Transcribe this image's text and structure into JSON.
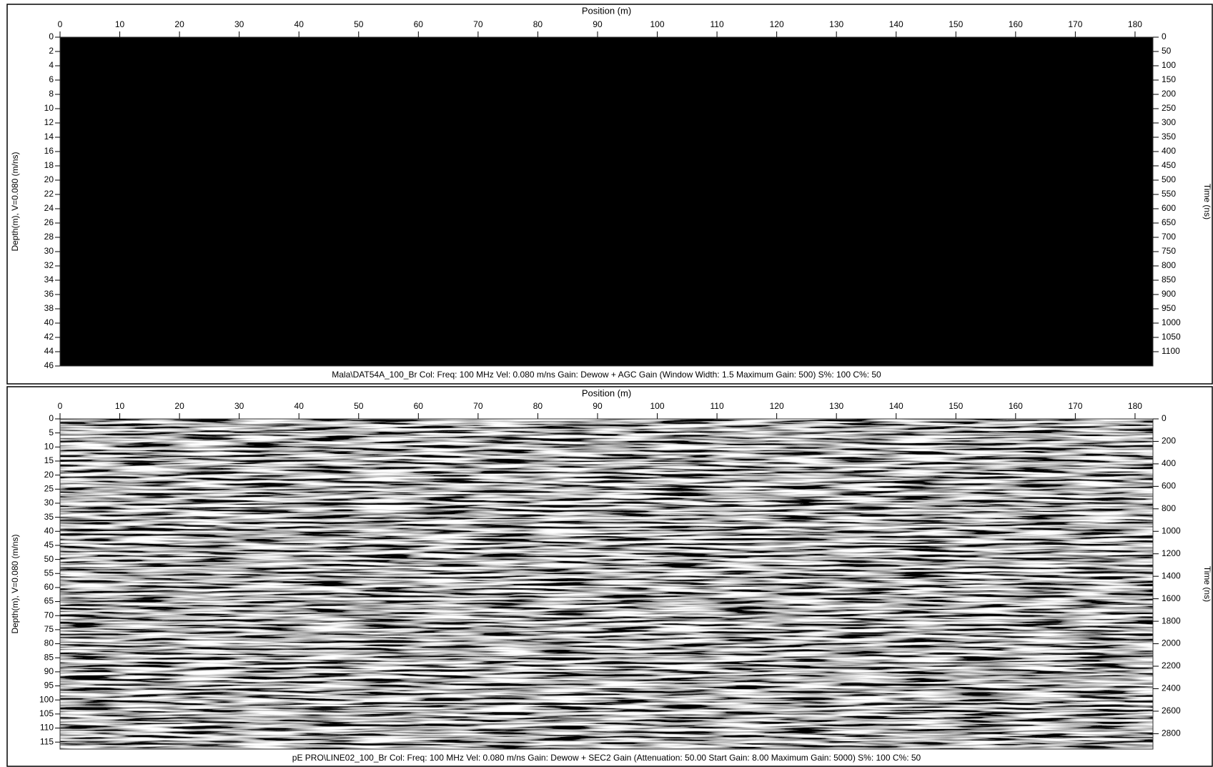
{
  "chart_data": [
    {
      "type": "radargram",
      "x_label": "Position (m)",
      "y_label": "Depth(m), V=0.080 (m/ns)",
      "y2_label": "Time (ns)",
      "caption": "Mala\\DAT54A_100_Br  Col:  Freq: 100 MHz Vel: 0.080 m/ns Gain: Dewow + AGC Gain (Window Width: 1.5 Maximum Gain: 500) S%: 100 C%: 50",
      "xlim": [
        0,
        183
      ],
      "xticks": [
        0,
        10,
        20,
        30,
        40,
        50,
        60,
        70,
        80,
        90,
        100,
        110,
        120,
        130,
        140,
        150,
        160,
        170,
        180
      ],
      "ylim": [
        0,
        46
      ],
      "yticks": [
        0,
        2,
        4,
        6,
        8,
        10,
        12,
        14,
        16,
        18,
        20,
        22,
        24,
        26,
        28,
        30,
        32,
        34,
        36,
        38,
        40,
        42,
        44,
        46
      ],
      "y2lim": [
        0,
        1150
      ],
      "y2ticks": [
        0,
        50,
        100,
        150,
        200,
        250,
        300,
        350,
        400,
        450,
        500,
        550,
        600,
        650,
        700,
        750,
        800,
        850,
        900,
        950,
        1000,
        1050,
        1100
      ]
    },
    {
      "type": "radargram",
      "x_label": "Position (m)",
      "y_label": "Depth(m), V=0.080 (m/ns)",
      "y2_label": "Time (ns)",
      "caption": "pE PRO\\LINE02_100_Br  Col:  Freq: 100 MHz Vel: 0.080 m/ns Gain: Dewow + SEC2 Gain (Attenuation: 50.00 Start Gain: 8.00 Maximum Gain: 5000) S%: 100 C%: 50",
      "xlim": [
        0,
        183
      ],
      "xticks": [
        0,
        10,
        20,
        30,
        40,
        50,
        60,
        70,
        80,
        90,
        100,
        110,
        120,
        130,
        140,
        150,
        160,
        170,
        180
      ],
      "ylim": [
        0,
        117.5
      ],
      "yticks": [
        0,
        5,
        10,
        15,
        20,
        25,
        30,
        35,
        40,
        45,
        50,
        55,
        60,
        65,
        70,
        75,
        80,
        85,
        90,
        95,
        100,
        105,
        110,
        115
      ],
      "y2lim": [
        0,
        2937.5
      ],
      "y2ticks": [
        0,
        200,
        400,
        600,
        800,
        1000,
        1200,
        1400,
        1600,
        1800,
        2000,
        2200,
        2400,
        2600,
        2800
      ]
    }
  ]
}
